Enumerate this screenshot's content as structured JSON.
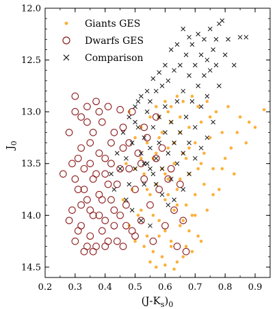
{
  "chart_data": {
    "type": "scatter",
    "xlabel": "(J-K",
    "xlabel_sub": "s",
    "xlabel_tail": ")",
    "xlabel_sub2": "0",
    "ylabel": "J",
    "ylabel_sub": "0",
    "xlim": [
      0.2,
      0.95
    ],
    "ylim": [
      14.6,
      12.0
    ],
    "y_inverted": true,
    "x_ticks": [
      0.2,
      0.3,
      0.4,
      0.5,
      0.6,
      0.7,
      0.8,
      0.9
    ],
    "x_tick_labels": [
      "0.2",
      "0.3",
      "0.4",
      "0.5",
      "0.6",
      "0.7",
      "0.8",
      "0.9"
    ],
    "y_ticks": [
      12.0,
      12.5,
      13.0,
      13.5,
      14.0,
      14.5
    ],
    "y_tick_labels": [
      "12.0",
      "12.5",
      "13.0",
      "13.5",
      "14.0",
      "14.5"
    ],
    "grid": false,
    "legend_position": "top-left",
    "series": [
      {
        "name": "Giants GES",
        "marker": "filled-circle",
        "color": "#fbb03b",
        "points": [
          [
            0.48,
            13.0
          ],
          [
            0.5,
            13.55
          ],
          [
            0.52,
            13.15
          ],
          [
            0.52,
            13.95
          ],
          [
            0.53,
            13.6
          ],
          [
            0.54,
            14.2
          ],
          [
            0.54,
            13.3
          ],
          [
            0.55,
            13.05
          ],
          [
            0.55,
            13.8
          ],
          [
            0.56,
            14.35
          ],
          [
            0.56,
            13.45
          ],
          [
            0.57,
            12.95
          ],
          [
            0.57,
            13.7
          ],
          [
            0.58,
            14.05
          ],
          [
            0.58,
            13.25
          ],
          [
            0.59,
            14.4
          ],
          [
            0.59,
            13.55
          ],
          [
            0.6,
            12.9
          ],
          [
            0.6,
            13.85
          ],
          [
            0.6,
            14.15
          ],
          [
            0.61,
            13.35
          ],
          [
            0.61,
            13.65
          ],
          [
            0.62,
            12.95
          ],
          [
            0.62,
            14.25
          ],
          [
            0.62,
            13.1
          ],
          [
            0.63,
            13.5
          ],
          [
            0.63,
            13.95
          ],
          [
            0.64,
            12.85
          ],
          [
            0.64,
            14.45
          ],
          [
            0.64,
            13.75
          ],
          [
            0.65,
            13.2
          ],
          [
            0.65,
            14.1
          ],
          [
            0.66,
            13.4
          ],
          [
            0.66,
            12.9
          ],
          [
            0.67,
            13.9
          ],
          [
            0.67,
            14.3
          ],
          [
            0.68,
            13.15
          ],
          [
            0.68,
            13.6
          ],
          [
            0.69,
            12.85
          ],
          [
            0.69,
            14.0
          ],
          [
            0.7,
            13.3
          ],
          [
            0.7,
            13.8
          ],
          [
            0.71,
            12.95
          ],
          [
            0.71,
            14.2
          ],
          [
            0.72,
            13.5
          ],
          [
            0.72,
            13.1
          ],
          [
            0.73,
            13.7
          ],
          [
            0.74,
            12.9
          ],
          [
            0.74,
            13.95
          ],
          [
            0.75,
            13.25
          ],
          [
            0.76,
            13.55
          ],
          [
            0.77,
            13.0
          ],
          [
            0.78,
            13.75
          ],
          [
            0.79,
            13.2
          ],
          [
            0.8,
            13.45
          ],
          [
            0.81,
            12.95
          ],
          [
            0.82,
            13.35
          ],
          [
            0.83,
            13.6
          ],
          [
            0.85,
            13.05
          ],
          [
            0.87,
            13.3
          ],
          [
            0.9,
            13.15
          ],
          [
            0.93,
            12.98
          ],
          [
            0.49,
            13.75
          ],
          [
            0.51,
            14.0
          ],
          [
            0.53,
            14.3
          ],
          [
            0.55,
            14.45
          ],
          [
            0.57,
            14.5
          ],
          [
            0.6,
            14.48
          ],
          [
            0.63,
            14.52
          ],
          [
            0.66,
            14.4
          ],
          [
            0.69,
            14.35
          ],
          [
            0.72,
            14.25
          ],
          [
            0.58,
            13.05
          ],
          [
            0.61,
            13.0
          ],
          [
            0.65,
            13.05
          ],
          [
            0.59,
            13.2
          ],
          [
            0.63,
            13.3
          ],
          [
            0.67,
            13.45
          ],
          [
            0.57,
            13.4
          ],
          [
            0.6,
            13.6
          ],
          [
            0.64,
            13.9
          ],
          [
            0.68,
            14.15
          ],
          [
            0.56,
            14.0
          ],
          [
            0.62,
            14.3
          ],
          [
            0.66,
            14.05
          ],
          [
            0.7,
            14.0
          ],
          [
            0.58,
            14.2
          ],
          [
            0.61,
            13.8
          ],
          [
            0.65,
            13.65
          ],
          [
            0.68,
            13.35
          ],
          [
            0.71,
            13.55
          ],
          [
            0.73,
            13.4
          ],
          [
            0.75,
            13.05
          ],
          [
            0.76,
            13.8
          ],
          [
            0.79,
            13.55
          ],
          [
            0.84,
            13.2
          ],
          [
            0.88,
            13.1
          ],
          [
            0.54,
            13.75
          ],
          [
            0.52,
            13.45
          ],
          [
            0.5,
            13.25
          ],
          [
            0.47,
            13.5
          ],
          [
            0.46,
            13.85
          ],
          [
            0.48,
            14.1
          ],
          [
            0.5,
            14.25
          ]
        ]
      },
      {
        "name": "Dwarfs GES",
        "marker": "open-circle",
        "color": "#8b1a1a",
        "points": [
          [
            0.26,
            13.6
          ],
          [
            0.28,
            13.2
          ],
          [
            0.29,
            13.95
          ],
          [
            0.3,
            12.85
          ],
          [
            0.3,
            14.25
          ],
          [
            0.31,
            13.45
          ],
          [
            0.31,
            13.75
          ],
          [
            0.32,
            14.1
          ],
          [
            0.32,
            13.05
          ],
          [
            0.33,
            14.35
          ],
          [
            0.33,
            13.55
          ],
          [
            0.34,
            12.95
          ],
          [
            0.34,
            13.85
          ],
          [
            0.35,
            14.2
          ],
          [
            0.35,
            13.3
          ],
          [
            0.36,
            13.65
          ],
          [
            0.36,
            14.0
          ],
          [
            0.37,
            12.9
          ],
          [
            0.37,
            14.3
          ],
          [
            0.38,
            13.4
          ],
          [
            0.38,
            13.8
          ],
          [
            0.39,
            14.15
          ],
          [
            0.39,
            13.1
          ],
          [
            0.4,
            13.6
          ],
          [
            0.4,
            14.05
          ],
          [
            0.41,
            12.95
          ],
          [
            0.41,
            14.25
          ],
          [
            0.42,
            13.5
          ],
          [
            0.42,
            13.85
          ],
          [
            0.43,
            13.2
          ],
          [
            0.43,
            14.1
          ],
          [
            0.44,
            13.7
          ],
          [
            0.45,
            14.0
          ],
          [
            0.45,
            12.98
          ],
          [
            0.46,
            13.35
          ],
          [
            0.46,
            14.3
          ],
          [
            0.47,
            13.9
          ],
          [
            0.48,
            13.55
          ],
          [
            0.49,
            14.15
          ],
          [
            0.5,
            13.75
          ],
          [
            0.51,
            13.4
          ],
          [
            0.52,
            14.05
          ],
          [
            0.53,
            13.65
          ],
          [
            0.54,
            13.25
          ],
          [
            0.55,
            13.9
          ],
          [
            0.56,
            14.25
          ],
          [
            0.57,
            13.45
          ],
          [
            0.58,
            13.75
          ],
          [
            0.6,
            14.1
          ],
          [
            0.62,
            13.55
          ],
          [
            0.63,
            13.95
          ],
          [
            0.64,
            14.3
          ],
          [
            0.65,
            13.7
          ],
          [
            0.66,
            14.05
          ],
          [
            0.67,
            14.35
          ],
          [
            0.28,
            14.05
          ],
          [
            0.3,
            13.65
          ],
          [
            0.32,
            13.9
          ],
          [
            0.34,
            14.3
          ],
          [
            0.36,
            14.35
          ],
          [
            0.38,
            14.0
          ],
          [
            0.4,
            14.3
          ],
          [
            0.31,
            14.15
          ],
          [
            0.33,
            13.75
          ],
          [
            0.35,
            13.95
          ],
          [
            0.37,
            13.6
          ],
          [
            0.39,
            13.85
          ],
          [
            0.41,
            13.7
          ],
          [
            0.43,
            13.95
          ],
          [
            0.44,
            14.25
          ],
          [
            0.47,
            14.1
          ],
          [
            0.5,
            14.2
          ],
          [
            0.32,
            13.35
          ],
          [
            0.34,
            13.1
          ],
          [
            0.3,
            13.0
          ],
          [
            0.36,
            13.2
          ],
          [
            0.38,
            13.0
          ],
          [
            0.42,
            13.3
          ],
          [
            0.46,
            13.15
          ],
          [
            0.49,
            13.0
          ],
          [
            0.53,
            13.15
          ],
          [
            0.57,
            13.05
          ],
          [
            0.59,
            13.35
          ],
          [
            0.61,
            13.65
          ],
          [
            0.29,
            13.5
          ],
          [
            0.35,
            13.5
          ],
          [
            0.4,
            13.45
          ],
          [
            0.45,
            13.55
          ],
          [
            0.48,
            13.3
          ],
          [
            0.52,
            13.5
          ]
        ]
      },
      {
        "name": "Comparison",
        "marker": "x",
        "color": "#111111",
        "points": [
          [
            0.42,
            13.6
          ],
          [
            0.44,
            13.4
          ],
          [
            0.46,
            13.2
          ],
          [
            0.47,
            13.45
          ],
          [
            0.48,
            13.05
          ],
          [
            0.48,
            13.7
          ],
          [
            0.49,
            13.3
          ],
          [
            0.5,
            12.95
          ],
          [
            0.5,
            13.55
          ],
          [
            0.51,
            13.15
          ],
          [
            0.52,
            13.4
          ],
          [
            0.52,
            12.85
          ],
          [
            0.53,
            13.25
          ],
          [
            0.53,
            13.7
          ],
          [
            0.54,
            13.0
          ],
          [
            0.54,
            13.5
          ],
          [
            0.55,
            12.9
          ],
          [
            0.55,
            13.35
          ],
          [
            0.56,
            13.15
          ],
          [
            0.56,
            13.6
          ],
          [
            0.57,
            12.8
          ],
          [
            0.57,
            13.45
          ],
          [
            0.58,
            13.05
          ],
          [
            0.58,
            13.3
          ],
          [
            0.59,
            12.75
          ],
          [
            0.59,
            13.55
          ],
          [
            0.6,
            13.2
          ],
          [
            0.6,
            12.95
          ],
          [
            0.61,
            13.4
          ],
          [
            0.61,
            12.7
          ],
          [
            0.62,
            13.1
          ],
          [
            0.62,
            13.65
          ],
          [
            0.63,
            12.6
          ],
          [
            0.63,
            13.3
          ],
          [
            0.64,
            12.9
          ],
          [
            0.64,
            13.5
          ],
          [
            0.65,
            12.55
          ],
          [
            0.65,
            13.2
          ],
          [
            0.66,
            12.8
          ],
          [
            0.66,
            13.4
          ],
          [
            0.67,
            12.45
          ],
          [
            0.67,
            13.05
          ],
          [
            0.68,
            12.65
          ],
          [
            0.68,
            13.3
          ],
          [
            0.69,
            12.35
          ],
          [
            0.69,
            12.9
          ],
          [
            0.7,
            12.55
          ],
          [
            0.7,
            13.15
          ],
          [
            0.71,
            12.25
          ],
          [
            0.71,
            12.75
          ],
          [
            0.72,
            12.45
          ],
          [
            0.72,
            12.95
          ],
          [
            0.73,
            12.3
          ],
          [
            0.73,
            12.65
          ],
          [
            0.74,
            12.5
          ],
          [
            0.74,
            12.85
          ],
          [
            0.75,
            12.2
          ],
          [
            0.75,
            12.6
          ],
          [
            0.76,
            12.4
          ],
          [
            0.77,
            12.3
          ],
          [
            0.77,
            12.55
          ],
          [
            0.78,
            12.15
          ],
          [
            0.78,
            12.75
          ],
          [
            0.8,
            12.45
          ],
          [
            0.81,
            12.3
          ],
          [
            0.83,
            12.55
          ],
          [
            0.85,
            12.28
          ],
          [
            0.87,
            12.28
          ],
          [
            0.79,
            12.12
          ],
          [
            0.64,
            12.35
          ],
          [
            0.62,
            12.4
          ],
          [
            0.66,
            12.2
          ],
          [
            0.68,
            12.28
          ],
          [
            0.6,
            12.55
          ],
          [
            0.58,
            12.62
          ],
          [
            0.56,
            12.68
          ],
          [
            0.54,
            12.8
          ],
          [
            0.51,
            12.9
          ],
          [
            0.5,
            13.1
          ],
          [
            0.53,
            13.5
          ],
          [
            0.55,
            13.55
          ],
          [
            0.57,
            13.7
          ],
          [
            0.59,
            13.8
          ],
          [
            0.61,
            13.9
          ],
          [
            0.63,
            13.85
          ],
          [
            0.66,
            13.75
          ],
          [
            0.68,
            13.6
          ],
          [
            0.7,
            13.45
          ],
          [
            0.72,
            13.35
          ],
          [
            0.74,
            13.25
          ],
          [
            0.76,
            13.1
          ],
          [
            0.45,
            13.55
          ],
          [
            0.43,
            13.75
          ],
          [
            0.47,
            13.85
          ],
          [
            0.49,
            13.95
          ],
          [
            0.52,
            14.05
          ],
          [
            0.55,
            14.1
          ]
        ]
      }
    ]
  }
}
